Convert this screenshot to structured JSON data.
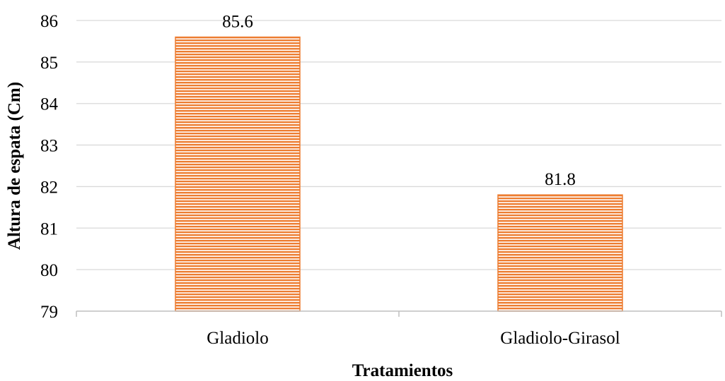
{
  "chart_data": {
    "type": "bar",
    "categories": [
      "Gladiolo",
      "Gladiolo-Girasol"
    ],
    "values": [
      85.6,
      81.8
    ],
    "data_labels": [
      "85.6",
      "81.8"
    ],
    "xlabel": "Tratamientos",
    "ylabel": "Altura de espata (Cm)",
    "ylim": [
      79,
      86
    ],
    "yticks": [
      "79",
      "80",
      "81",
      "82",
      "83",
      "84",
      "85",
      "86"
    ],
    "grid": true,
    "legend": "none",
    "bar_color": "#ed7d31",
    "bar_fill_pattern": "horizontal-stripes"
  }
}
